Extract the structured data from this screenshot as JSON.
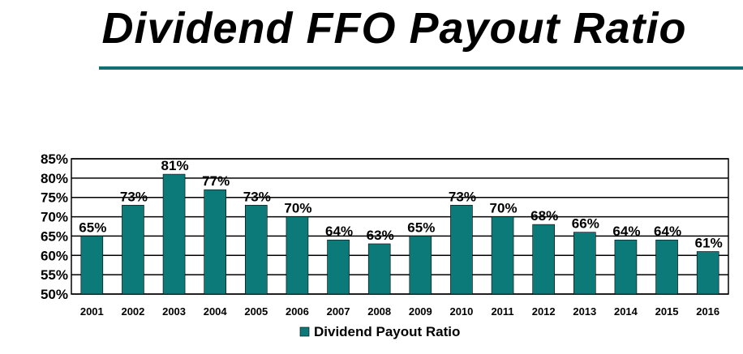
{
  "title": "Dividend FFO Payout Ratio",
  "colors": {
    "bar": "#0d7a7a",
    "rule": "#0f6f73"
  },
  "chart_data": {
    "type": "bar",
    "categories": [
      "2001",
      "2002",
      "2003",
      "2004",
      "2005",
      "2006",
      "2007",
      "2008",
      "2009",
      "2010",
      "2011",
      "2012",
      "2013",
      "2014",
      "2015",
      "2016"
    ],
    "series": [
      {
        "name": "Dividend Payout Ratio",
        "values": [
          65,
          73,
          81,
          77,
          73,
          70,
          64,
          63,
          65,
          73,
          70,
          68,
          66,
          64,
          64,
          61
        ],
        "labels": [
          "65%",
          "73%",
          "81%",
          "77%",
          "73%",
          "70%",
          "64%",
          "63%",
          "65%",
          "73%",
          "70%",
          "68%",
          "66%",
          "64%",
          "64%",
          "61%"
        ]
      }
    ],
    "ylim": [
      50,
      85
    ],
    "yticks": [
      "50%",
      "55%",
      "60%",
      "65%",
      "70%",
      "75%",
      "80%",
      "85%"
    ],
    "grid": true,
    "legend": "bottom"
  }
}
